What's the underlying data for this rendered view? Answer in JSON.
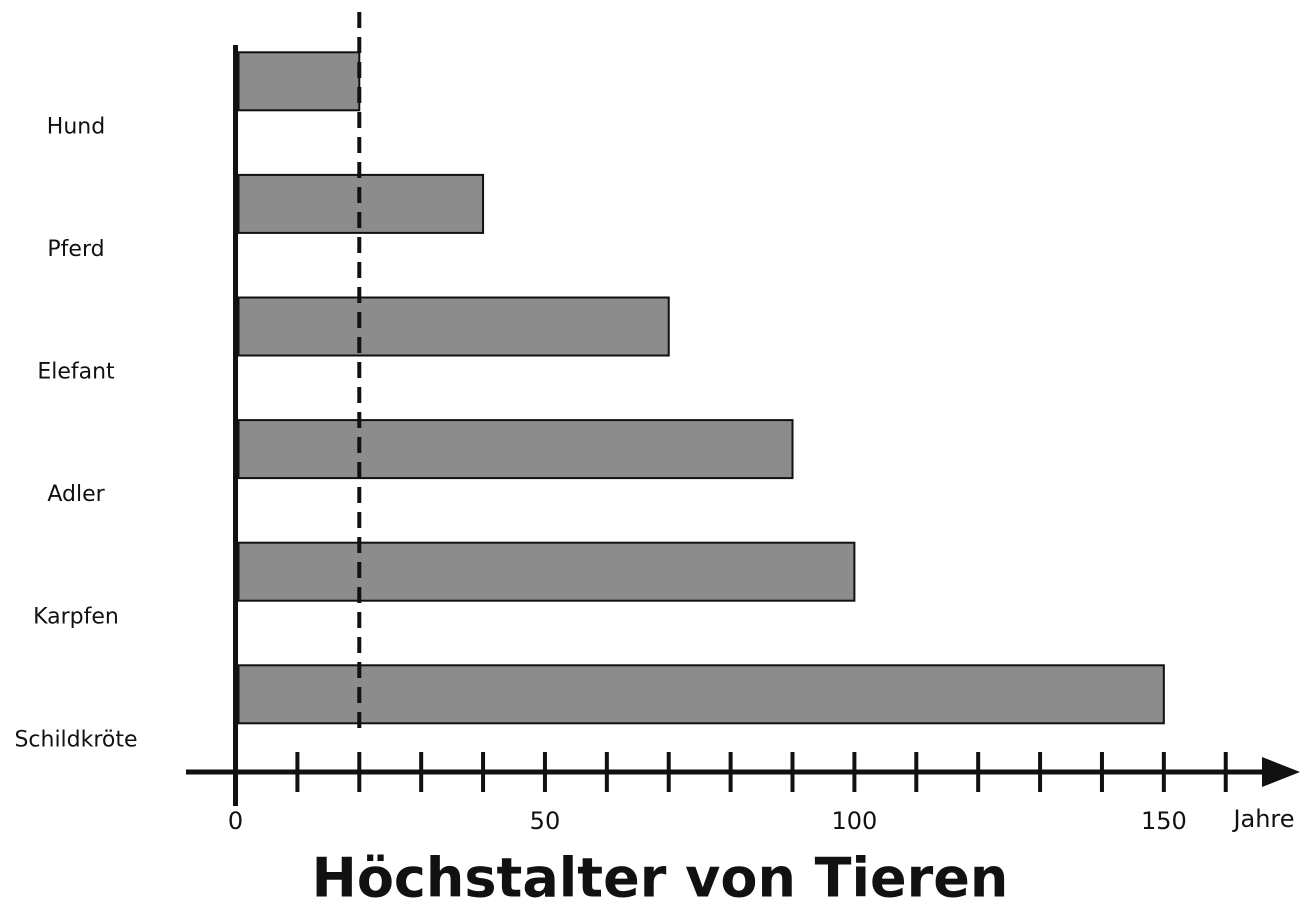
{
  "chart_data": {
    "type": "barh",
    "title": "Höchstalter von Tieren",
    "x_label": "Jahre",
    "categories": [
      "Hund",
      "Pferd",
      "Elefant",
      "Adler",
      "Karpfen",
      "Schildkröte"
    ],
    "values": [
      20,
      40,
      70,
      90,
      100,
      150
    ],
    "color": "#8c8c8c",
    "xlim": [
      -8,
      172
    ],
    "xticks": [
      0,
      50,
      100,
      150
    ],
    "minor_xticks": [
      10,
      20,
      30,
      40,
      60,
      70,
      80,
      90,
      110,
      120,
      130,
      140,
      160
    ]
  }
}
